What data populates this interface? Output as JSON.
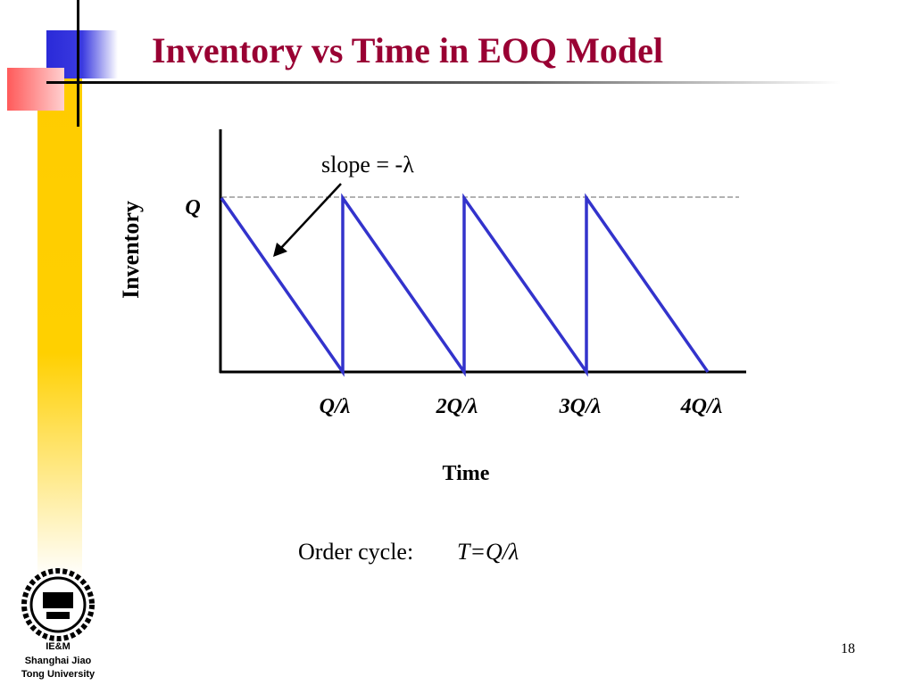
{
  "header": {
    "title": "Inventory vs Time in EOQ Model"
  },
  "diagram": {
    "y_axis_label": "Inventory",
    "level_label": "Q",
    "slope_label": "slope = -λ",
    "x_labels": [
      "Q/λ",
      "2Q/λ",
      "3Q/λ",
      "4Q/λ"
    ],
    "x_axis_label": "Time"
  },
  "note": {
    "text": "Order cycle:",
    "formula": "T=Q/λ"
  },
  "logo": {
    "lines": [
      "IE&M",
      "Shanghai Jiao",
      "Tong University"
    ]
  },
  "page_number": "18"
}
